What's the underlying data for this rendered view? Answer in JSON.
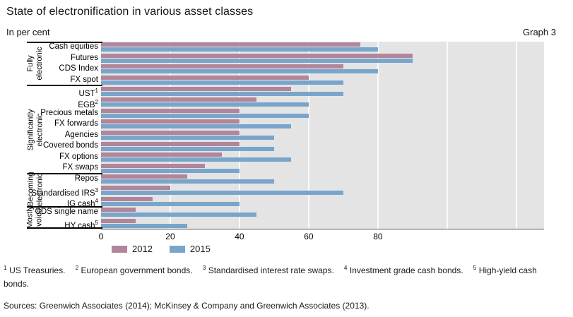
{
  "header": {
    "title": "State of electronification in various asset classes",
    "unit_label": "In per cent",
    "graph_label": "Graph 3"
  },
  "chart_data": {
    "type": "bar",
    "orientation": "horizontal",
    "title": "State of electronification in various asset classes",
    "unit": "per cent",
    "x_ticks": [
      0,
      20,
      40,
      60,
      80
    ],
    "x_max": 128,
    "gridlines": [
      20,
      40,
      60,
      80,
      100,
      120
    ],
    "plot_background": "#e4e4e4",
    "gridline_color": "#fafafa",
    "legend_position": "bottom",
    "groups": [
      {
        "label": "Fully electronic",
        "lines": [
          "Fully",
          "electronic"
        ],
        "rows": 4
      },
      {
        "label": "Significantly electronic",
        "lines": [
          "Significantly",
          "electronic"
        ],
        "rows": 8
      },
      {
        "label": "Becoming electronic",
        "lines": [
          "Becoming",
          "electronic"
        ],
        "rows": 3
      },
      {
        "label": "Mostly voice",
        "lines": [
          "Mostly",
          "voice"
        ],
        "rows": 2
      }
    ],
    "categories": [
      {
        "label": "Cash equities",
        "sup": ""
      },
      {
        "label": "Futures",
        "sup": ""
      },
      {
        "label": "CDS Index",
        "sup": ""
      },
      {
        "label": "FX spot",
        "sup": ""
      },
      {
        "label": "UST",
        "sup": "1"
      },
      {
        "label": "EGB",
        "sup": "2"
      },
      {
        "label": "Precious metals",
        "sup": ""
      },
      {
        "label": "FX forwards",
        "sup": ""
      },
      {
        "label": "Agencies",
        "sup": ""
      },
      {
        "label": "Covered bonds",
        "sup": ""
      },
      {
        "label": "FX options",
        "sup": ""
      },
      {
        "label": "FX swaps",
        "sup": ""
      },
      {
        "label": "Repos",
        "sup": ""
      },
      {
        "label": "Standardised IRS",
        "sup": "3"
      },
      {
        "label": "IG cash",
        "sup": "4"
      },
      {
        "label": "CDS single name",
        "sup": ""
      },
      {
        "label": "HY cash",
        "sup": "5"
      }
    ],
    "series": [
      {
        "name": "2012",
        "color": "#b1869b",
        "values": [
          75,
          90,
          70,
          60,
          55,
          45,
          40,
          40,
          40,
          40,
          35,
          30,
          25,
          20,
          15,
          10,
          10
        ]
      },
      {
        "name": "2015",
        "color": "#79a5cb",
        "values": [
          80,
          90,
          80,
          70,
          70,
          60,
          60,
          55,
          50,
          50,
          55,
          40,
          50,
          70,
          40,
          45,
          25
        ]
      }
    ]
  },
  "footnotes": [
    {
      "sup": "1",
      "text": "US Treasuries."
    },
    {
      "sup": "2",
      "text": "European government bonds."
    },
    {
      "sup": "3",
      "text": "Standardised interest rate swaps."
    },
    {
      "sup": "4",
      "text": "Investment grade cash bonds."
    },
    {
      "sup": "5",
      "text": "High-yield cash bonds."
    }
  ],
  "sources": {
    "text": "Sources: Greenwich Associates (2014); McKinsey & Company and Greenwich Associates (2013)."
  }
}
